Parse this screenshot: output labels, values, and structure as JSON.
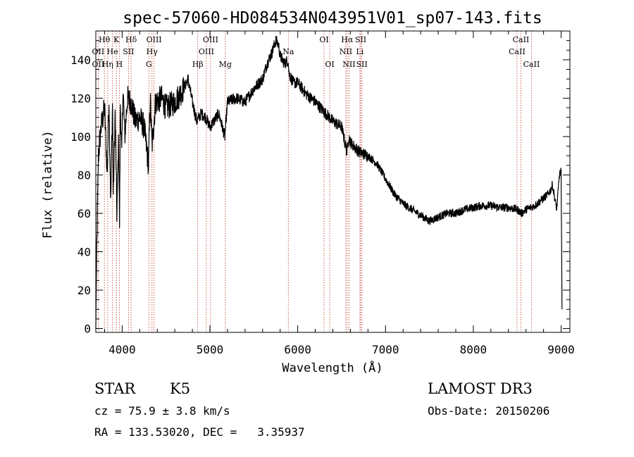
{
  "chart_data": {
    "type": "line",
    "title": "spec-57060-HD084534N043951V01_sp07-143.fits",
    "xlabel": "Wavelength (Å)",
    "ylabel": "Flux (relative)",
    "xlim": [
      3700,
      9100
    ],
    "ylim": [
      -2,
      155
    ],
    "xticks": [
      4000,
      5000,
      6000,
      7000,
      8000,
      9000
    ],
    "yticks": [
      0,
      20,
      40,
      60,
      80,
      100,
      120,
      140
    ],
    "series": [
      {
        "name": "spectrum",
        "x": [
          3700,
          3710,
          3730,
          3760,
          3800,
          3830,
          3850,
          3870,
          3890,
          3900,
          3920,
          3940,
          3960,
          3970,
          3980,
          3995,
          4010,
          4030,
          4060,
          4100,
          4150,
          4200,
          4250,
          4300,
          4320,
          4340,
          4380,
          4450,
          4500,
          4600,
          4700,
          4750,
          4800,
          4850,
          4900,
          4950,
          5000,
          5100,
          5170,
          5200,
          5300,
          5400,
          5500,
          5600,
          5650,
          5700,
          5750,
          5780,
          5800,
          5850,
          5890,
          5900,
          5950,
          6000,
          6050,
          6100,
          6200,
          6300,
          6400,
          6500,
          6560,
          6580,
          6600,
          6700,
          6800,
          6900,
          7000,
          7100,
          7200,
          7300,
          7400,
          7500,
          7600,
          7700,
          7800,
          7900,
          8000,
          8100,
          8200,
          8300,
          8400,
          8500,
          8550,
          8600,
          8650,
          8700,
          8750,
          8800,
          8850,
          8880,
          8900,
          8950,
          8980,
          9000,
          9010
        ],
        "y": [
          0,
          40,
          90,
          105,
          115,
          80,
          120,
          65,
          118,
          70,
          112,
          60,
          100,
          55,
          118,
          90,
          125,
          100,
          120,
          118,
          108,
          110,
          105,
          85,
          120,
          95,
          118,
          120,
          115,
          118,
          125,
          130,
          118,
          108,
          112,
          110,
          105,
          112,
          100,
          118,
          120,
          118,
          125,
          130,
          138,
          143,
          150,
          148,
          142,
          138,
          140,
          133,
          128,
          128,
          125,
          122,
          118,
          113,
          108,
          105,
          92,
          100,
          97,
          92,
          90,
          86,
          78,
          70,
          65,
          62,
          59,
          56,
          58,
          60,
          60,
          62,
          63,
          64,
          64,
          63,
          63,
          62,
          60,
          62,
          63,
          64,
          66,
          68,
          70,
          72,
          75,
          62,
          80,
          82,
          10
        ]
      }
    ],
    "line_markers": {
      "top_row": [
        {
          "label": "Hθ",
          "wavelength": 3798
        },
        {
          "label": "K",
          "wavelength": 3934
        },
        {
          "label": "Hδ",
          "wavelength": 4102
        },
        {
          "label": "OIII",
          "wavelength": 4363
        },
        {
          "label": "OIII",
          "wavelength": 5007
        },
        {
          "label": "OI",
          "wavelength": 6300
        },
        {
          "label": "Hα",
          "wavelength": 6563
        },
        {
          "label": "SII",
          "wavelength": 6717
        },
        {
          "label": "CaII",
          "wavelength": 8542
        }
      ],
      "mid_row": [
        {
          "label": "OII",
          "wavelength": 3727
        },
        {
          "label": "He",
          "wavelength": 3889
        },
        {
          "label": "SII",
          "wavelength": 4072
        },
        {
          "label": "Hγ",
          "wavelength": 4340
        },
        {
          "label": "OIII",
          "wavelength": 4959
        },
        {
          "label": "Na",
          "wavelength": 5893
        },
        {
          "label": "NII",
          "wavelength": 6548
        },
        {
          "label": "Li",
          "wavelength": 6708
        },
        {
          "label": "CaII",
          "wavelength": 8498
        }
      ],
      "bottom_row": [
        {
          "label": "OII",
          "wavelength": 3727
        },
        {
          "label": "Hη",
          "wavelength": 3835
        },
        {
          "label": "H",
          "wavelength": 3968
        },
        {
          "label": "G",
          "wavelength": 4304
        },
        {
          "label": "Hβ",
          "wavelength": 4861
        },
        {
          "label": "Mg",
          "wavelength": 5175
        },
        {
          "label": "OI",
          "wavelength": 6364
        },
        {
          "label": "NII",
          "wavelength": 6584
        },
        {
          "label": "SII",
          "wavelength": 6731
        },
        {
          "label": "CaII",
          "wavelength": 8662
        }
      ]
    }
  },
  "info": {
    "object_class": "STAR",
    "subclass": "K5",
    "survey": "LAMOST DR3",
    "redshift": "cz = 75.9 ± 3.8 km/s",
    "obs_date": "Obs-Date: 20150206",
    "coords": "RA = 133.53020, DEC =   3.35937"
  },
  "colors": {
    "line": "#000000",
    "marker": "#c0392b"
  }
}
